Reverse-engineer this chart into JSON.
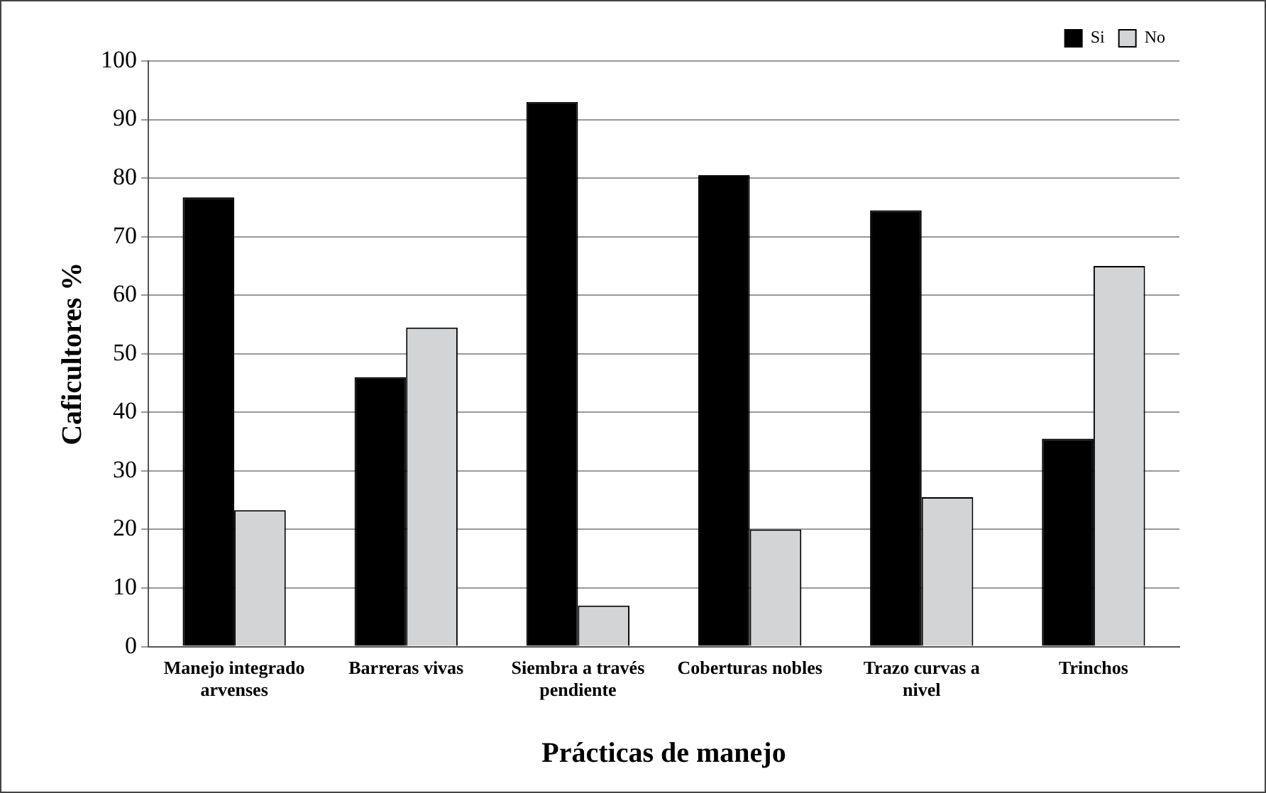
{
  "chart_data": {
    "type": "bar",
    "xlabel": "Prácticas de manejo",
    "ylabel": "Caficultores %",
    "categories": [
      "Manejo integrado arvenses",
      "Barreras vivas",
      "Siembra a través pendiente",
      "Coberturas nobles",
      "Trazo curvas a nivel",
      "Trinchos"
    ],
    "series": [
      {
        "name": "Si",
        "color": "#000000",
        "values": [
          76.7,
          46,
          93,
          80.5,
          74.5,
          35.5
        ]
      },
      {
        "name": "No",
        "color": "#d3d4d6",
        "values": [
          23.3,
          54.5,
          7,
          20,
          25.5,
          65
        ]
      }
    ],
    "ylim": [
      0,
      100
    ],
    "yticks": [
      0,
      10,
      20,
      30,
      40,
      50,
      60,
      70,
      80,
      90,
      100
    ],
    "grid": "y",
    "legend": "top right"
  }
}
